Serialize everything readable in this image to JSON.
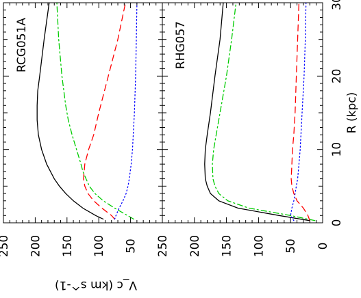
{
  "chart_data": {
    "type": "line",
    "orientation": "rotated 90 degrees clockwise (x axis vertical on right, y axis horizontal at bottom)",
    "xlabel": "R (kpc)",
    "ylabel": "V_c (km s^-1)",
    "xlim": [
      0,
      30
    ],
    "ylim": [
      0,
      250
    ],
    "x_ticks": [
      "0",
      "10",
      "20",
      "30"
    ],
    "y_ticks": [
      "250",
      "200",
      "150",
      "100",
      "50",
      "0"
    ],
    "shared_x_axis": true,
    "panels": [
      {
        "label": "RCG051A",
        "series": [
          {
            "style": "solid",
            "color": "#000000",
            "points": [
              [
                0.5,
                93
              ],
              [
                1,
                105
              ],
              [
                2,
                125
              ],
              [
                3,
                140
              ],
              [
                4,
                152
              ],
              [
                5,
                162
              ],
              [
                6,
                170
              ],
              [
                8,
                182
              ],
              [
                10,
                190
              ],
              [
                12,
                195
              ],
              [
                14,
                197
              ],
              [
                16,
                197
              ],
              [
                18,
                196
              ],
              [
                20,
                193
              ],
              [
                25,
                186
              ],
              [
                30,
                178
              ]
            ]
          },
          {
            "style": "dash-dot",
            "color": "#00cc00",
            "points": [
              [
                0.5,
                45
              ],
              [
                1,
                55
              ],
              [
                2,
                75
              ],
              [
                3,
                93
              ],
              [
                4,
                106
              ],
              [
                5,
                115
              ],
              [
                6,
                120
              ],
              [
                7,
                125
              ],
              [
                8,
                128
              ],
              [
                10,
                135
              ],
              [
                12,
                142
              ],
              [
                14,
                148
              ],
              [
                16,
                152
              ],
              [
                20,
                158
              ],
              [
                25,
                163
              ],
              [
                30,
                166
              ]
            ]
          },
          {
            "style": "dashed",
            "color": "#ff0000",
            "points": [
              [
                0.5,
                75
              ],
              [
                1,
                80
              ],
              [
                2,
                95
              ],
              [
                3,
                108
              ],
              [
                4,
                117
              ],
              [
                5,
                122
              ],
              [
                6,
                124
              ],
              [
                8,
                122
              ],
              [
                10,
                116
              ],
              [
                12,
                108
              ],
              [
                15,
                100
              ],
              [
                20,
                85
              ],
              [
                25,
                70
              ],
              [
                30,
                58
              ]
            ]
          },
          {
            "style": "dotted",
            "color": "#0000ff",
            "points": [
              [
                0.5,
                75
              ],
              [
                1,
                73
              ],
              [
                2,
                68
              ],
              [
                3,
                62
              ],
              [
                4,
                57
              ],
              [
                5,
                54
              ],
              [
                6,
                52
              ],
              [
                8,
                49
              ],
              [
                10,
                47
              ],
              [
                15,
                44
              ],
              [
                20,
                42
              ],
              [
                25,
                41
              ],
              [
                30,
                40
              ]
            ]
          }
        ]
      },
      {
        "label": "RHG057",
        "series": [
          {
            "style": "solid",
            "color": "#000000",
            "points": [
              [
                0.3,
                20
              ],
              [
                1,
                68
              ],
              [
                2,
                132
              ],
              [
                3,
                162
              ],
              [
                4,
                175
              ],
              [
                5,
                180
              ],
              [
                6,
                183
              ],
              [
                8,
                184
              ],
              [
                10,
                183
              ],
              [
                12,
                180
              ],
              [
                15,
                175
              ],
              [
                20,
                168
              ],
              [
                25,
                160
              ],
              [
                30,
                155
              ]
            ]
          },
          {
            "style": "dash-dot",
            "color": "#00cc00",
            "points": [
              [
                0.3,
                12
              ],
              [
                1,
                50
              ],
              [
                2,
                115
              ],
              [
                3,
                148
              ],
              [
                4,
                162
              ],
              [
                5,
                168
              ],
              [
                6,
                171
              ],
              [
                8,
                172
              ],
              [
                10,
                170
              ],
              [
                12,
                166
              ],
              [
                15,
                160
              ],
              [
                20,
                150
              ],
              [
                25,
                142
              ],
              [
                30,
                135
              ]
            ]
          },
          {
            "style": "dashed",
            "color": "#ff0000",
            "points": [
              [
                0.3,
                20
              ],
              [
                1,
                23
              ],
              [
                2,
                30
              ],
              [
                3,
                40
              ],
              [
                4,
                45
              ],
              [
                5,
                48
              ],
              [
                6,
                49
              ],
              [
                8,
                48
              ],
              [
                10,
                47
              ],
              [
                12,
                45
              ],
              [
                15,
                43
              ],
              [
                20,
                41
              ],
              [
                25,
                39
              ],
              [
                30,
                37
              ]
            ]
          },
          {
            "style": "dotted",
            "color": "#0000ff",
            "points": [
              [
                0.3,
                45
              ],
              [
                1,
                50
              ],
              [
                2,
                48
              ],
              [
                3,
                45
              ],
              [
                4,
                43
              ],
              [
                5,
                41
              ],
              [
                6,
                39
              ],
              [
                8,
                37
              ],
              [
                10,
                35
              ],
              [
                15,
                32
              ],
              [
                20,
                29
              ],
              [
                25,
                27
              ],
              [
                30,
                26
              ]
            ]
          }
        ]
      }
    ]
  }
}
